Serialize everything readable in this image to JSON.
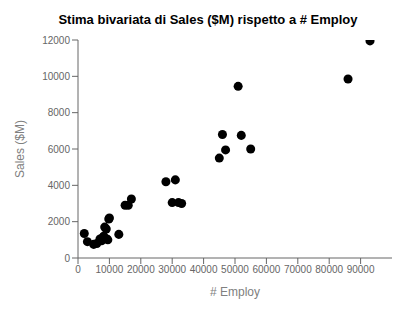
{
  "chart_data": {
    "type": "scatter",
    "title": "Stima bivariata di Sales ($M) rispetto a # Employ",
    "xlabel": "# Employ",
    "ylabel": "Sales ($M)",
    "x": [
      2000,
      3000,
      5000,
      6000,
      7000,
      7500,
      8000,
      8200,
      8500,
      9000,
      9200,
      9500,
      9800,
      10000,
      13000,
      15000,
      16000,
      17000,
      28000,
      30000,
      31000,
      32000,
      33000,
      45000,
      46000,
      47000,
      51000,
      52000,
      55000,
      86000,
      93000
    ],
    "values": [
      1350,
      900,
      750,
      800,
      1050,
      950,
      1150,
      1200,
      1700,
      1600,
      1050,
      1000,
      2150,
      2200,
      1300,
      2900,
      2900,
      3250,
      4200,
      3050,
      4300,
      3050,
      3000,
      5500,
      6800,
      5950,
      9450,
      6750,
      6000,
      9850,
      11950
    ],
    "color": "#000000",
    "xlim": [
      0,
      100000
    ],
    "ylim": [
      0,
      12000
    ],
    "xticks": [
      0,
      10000,
      20000,
      30000,
      40000,
      50000,
      60000,
      70000,
      80000,
      90000
    ],
    "yticks": [
      0,
      2000,
      4000,
      6000,
      8000,
      10000,
      12000
    ],
    "grid": false
  }
}
